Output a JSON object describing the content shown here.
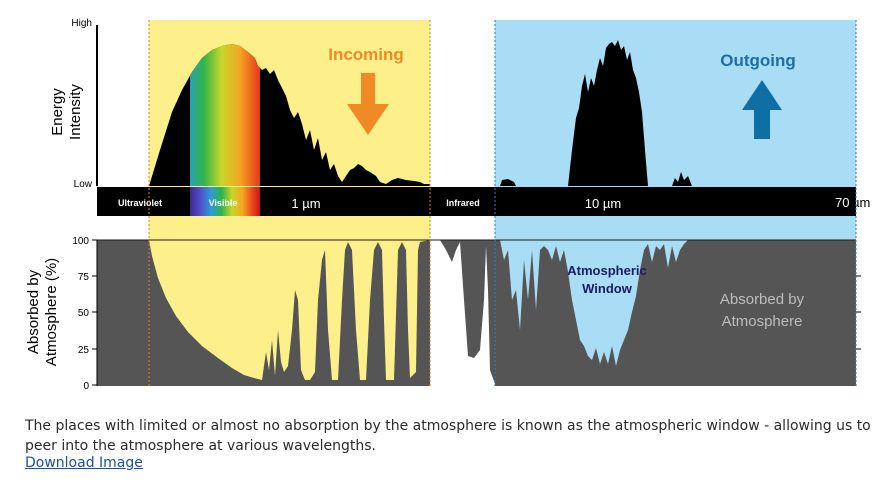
{
  "figure": {
    "top": {
      "y_high": "High",
      "y_low": "Low",
      "y_title_line1": "Energy",
      "y_title_line2": "Intensity",
      "incoming": "Incoming",
      "outgoing": "Outgoing"
    },
    "bar": {
      "ultraviolet": "Ultraviolet",
      "visible": "Visible",
      "um1": "1 µm",
      "infrared": "Infrared",
      "um10": "10 µm",
      "um70": "70 µm"
    },
    "bottom": {
      "y_title_line1": "Absorbed by",
      "y_title_line2": "Atmosphere (%)",
      "ticks": [
        "100",
        "75",
        "50",
        "25",
        "0"
      ],
      "window_line1": "Atmospheric",
      "window_line2": "Window",
      "absorbed_line1": "Absorbed by",
      "absorbed_line2": "Atmosphere"
    },
    "colors": {
      "incoming_band": "#fdf08a",
      "outgoing_band": "#a8ddf5",
      "absorbed": "#555555",
      "incoming_arrow": "#f08a24",
      "outgoing_arrow": "#0e6fa5"
    }
  },
  "caption": "The places with limited or almost no absorption by the atmosphere is known as the atmospheric window - allowing us to peer into the atmosphere at various wavelengths.",
  "download_link": "Download Image"
}
